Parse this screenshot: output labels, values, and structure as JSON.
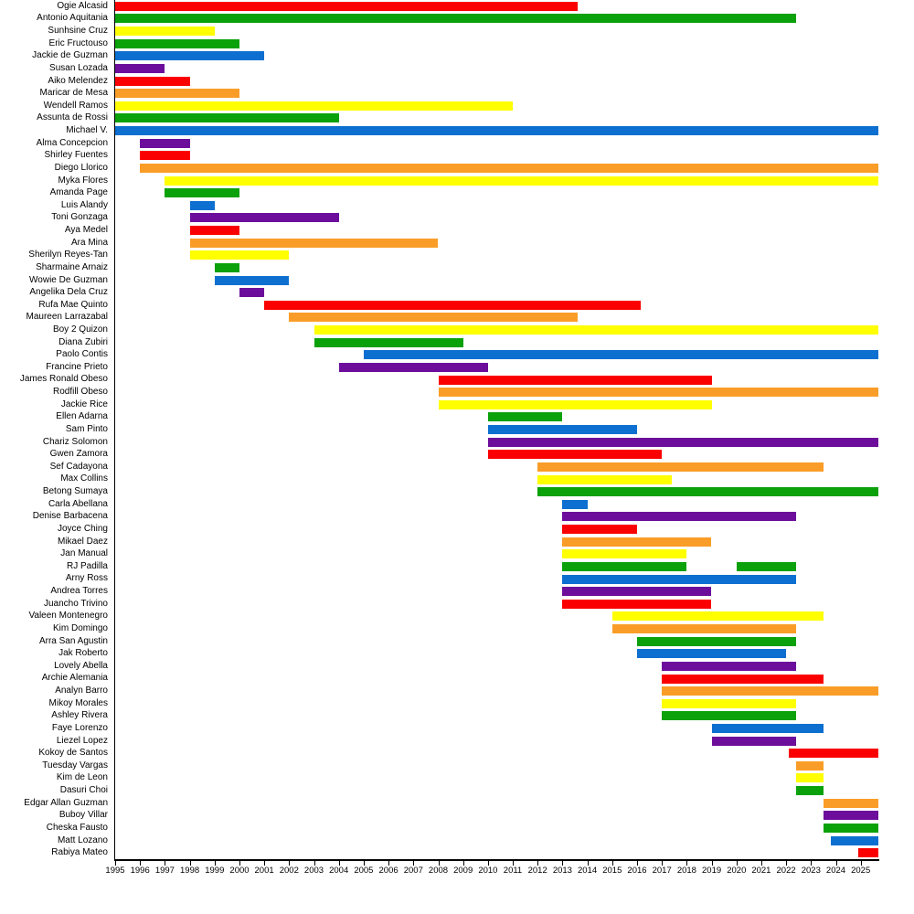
{
  "chart_data": {
    "type": "bar",
    "variant": "horizontal-gantt-timeline",
    "title": "",
    "xlabel": "",
    "ylabel": "",
    "grid": false,
    "legend": false,
    "x_axis": {
      "min": 1995,
      "max": 2025.7,
      "tick_years": [
        1995,
        1996,
        1997,
        1998,
        1999,
        2000,
        2001,
        2002,
        2003,
        2004,
        2005,
        2006,
        2007,
        2008,
        2009,
        2010,
        2011,
        2012,
        2013,
        2014,
        2015,
        2016,
        2017,
        2018,
        2019,
        2020,
        2021,
        2022,
        2023,
        2024,
        2025
      ]
    },
    "present_end": 2025.7,
    "palette": {
      "red": "#fa0000",
      "orange": "#fa9d28",
      "yellow": "#ffff00",
      "green": "#0ba10b",
      "blue": "#0d6fd0",
      "purple": "#6c0e9b"
    },
    "members": [
      {
        "name": "Ogie Alcasid",
        "color": "red",
        "segments": [
          [
            1995,
            2013.6
          ]
        ]
      },
      {
        "name": "Antonio Aquitania",
        "color": "green",
        "segments": [
          [
            1995,
            2022.4
          ]
        ]
      },
      {
        "name": "Sunhsine Cruz",
        "color": "yellow",
        "segments": [
          [
            1995,
            1999
          ]
        ]
      },
      {
        "name": "Eric Fructouso",
        "color": "green",
        "segments": [
          [
            1995,
            2000
          ]
        ]
      },
      {
        "name": "Jackie de Guzman",
        "color": "blue",
        "segments": [
          [
            1995,
            2001
          ]
        ]
      },
      {
        "name": "Susan Lozada",
        "color": "purple",
        "segments": [
          [
            1995,
            1997
          ]
        ]
      },
      {
        "name": "Aiko Melendez",
        "color": "red",
        "segments": [
          [
            1995,
            1998
          ]
        ]
      },
      {
        "name": "Maricar de Mesa",
        "color": "orange",
        "segments": [
          [
            1995,
            2000
          ]
        ]
      },
      {
        "name": "Wendell Ramos",
        "color": "yellow",
        "segments": [
          [
            1995,
            2011
          ]
        ]
      },
      {
        "name": "Assunta de Rossi",
        "color": "green",
        "segments": [
          [
            1995,
            2004
          ]
        ]
      },
      {
        "name": "Michael V.",
        "color": "blue",
        "segments": [
          [
            1995,
            2025.7
          ]
        ]
      },
      {
        "name": "Alma Concepcion",
        "color": "purple",
        "segments": [
          [
            1996,
            1998
          ]
        ]
      },
      {
        "name": "Shirley Fuentes",
        "color": "red",
        "segments": [
          [
            1996,
            1998
          ]
        ]
      },
      {
        "name": "Diego Llorico",
        "color": "orange",
        "segments": [
          [
            1996,
            2025.7
          ]
        ]
      },
      {
        "name": "Myka Flores",
        "color": "yellow",
        "segments": [
          [
            1997,
            2025.7
          ]
        ]
      },
      {
        "name": "Amanda Page",
        "color": "green",
        "segments": [
          [
            1997,
            2000
          ]
        ]
      },
      {
        "name": "Luis Alandy",
        "color": "blue",
        "segments": [
          [
            1998,
            1999
          ]
        ]
      },
      {
        "name": "Toni Gonzaga",
        "color": "purple",
        "segments": [
          [
            1998,
            2004
          ]
        ]
      },
      {
        "name": "Aya Medel",
        "color": "red",
        "segments": [
          [
            1998,
            2000
          ]
        ]
      },
      {
        "name": "Ara Mina",
        "color": "orange",
        "segments": [
          [
            1998,
            2008
          ]
        ]
      },
      {
        "name": "Sherilyn Reyes-Tan",
        "color": "yellow",
        "segments": [
          [
            1998,
            2002
          ]
        ]
      },
      {
        "name": "Sharmaine Arnaiz",
        "color": "green",
        "segments": [
          [
            1999,
            2000
          ]
        ]
      },
      {
        "name": "Wowie De Guzman",
        "color": "blue",
        "segments": [
          [
            1999,
            2002
          ]
        ]
      },
      {
        "name": "Angelika Dela Cruz",
        "color": "purple",
        "segments": [
          [
            2000,
            2001
          ]
        ]
      },
      {
        "name": "Rufa Mae Quinto",
        "color": "red",
        "segments": [
          [
            2001,
            2016.15
          ]
        ]
      },
      {
        "name": "Maureen Larrazabal",
        "color": "orange",
        "segments": [
          [
            2002,
            2013.6
          ]
        ]
      },
      {
        "name": "Boy 2 Quizon",
        "color": "yellow",
        "segments": [
          [
            2003,
            2025.7
          ]
        ]
      },
      {
        "name": "Diana Zubiri",
        "color": "green",
        "segments": [
          [
            2003,
            2009
          ]
        ]
      },
      {
        "name": "Paolo Contis",
        "color": "blue",
        "segments": [
          [
            2005,
            2025.7
          ]
        ]
      },
      {
        "name": "Francine Prieto",
        "color": "purple",
        "segments": [
          [
            2004,
            2010
          ]
        ]
      },
      {
        "name": "James Ronald Obeso",
        "color": "red",
        "segments": [
          [
            2008,
            2019
          ]
        ]
      },
      {
        "name": "Rodfill Obeso",
        "color": "orange",
        "segments": [
          [
            2008,
            2025.7
          ]
        ]
      },
      {
        "name": "Jackie Rice",
        "color": "yellow",
        "segments": [
          [
            2008,
            2019
          ]
        ]
      },
      {
        "name": "Ellen Adarna",
        "color": "green",
        "segments": [
          [
            2010,
            2013
          ]
        ]
      },
      {
        "name": "Sam Pinto",
        "color": "blue",
        "segments": [
          [
            2010,
            2016
          ]
        ]
      },
      {
        "name": "Chariz Solomon",
        "color": "purple",
        "segments": [
          [
            2010,
            2025.7
          ]
        ]
      },
      {
        "name": "Gwen Zamora",
        "color": "red",
        "segments": [
          [
            2010,
            2017
          ]
        ]
      },
      {
        "name": "Sef Cadayona",
        "color": "orange",
        "segments": [
          [
            2012,
            2023.5
          ]
        ]
      },
      {
        "name": "Max Collins",
        "color": "yellow",
        "segments": [
          [
            2012,
            2017.4
          ]
        ]
      },
      {
        "name": "Betong Sumaya",
        "color": "green",
        "segments": [
          [
            2012,
            2025.7
          ]
        ]
      },
      {
        "name": "Carla Abellana",
        "color": "blue",
        "segments": [
          [
            2013,
            2014
          ]
        ]
      },
      {
        "name": "Denise Barbacena",
        "color": "purple",
        "segments": [
          [
            2013,
            2022.4
          ]
        ]
      },
      {
        "name": "Joyce Ching",
        "color": "red",
        "segments": [
          [
            2013,
            2016
          ]
        ]
      },
      {
        "name": "Mikael Daez",
        "color": "orange",
        "segments": [
          [
            2013,
            2019
          ]
        ]
      },
      {
        "name": "Jan Manual",
        "color": "yellow",
        "segments": [
          [
            2013,
            2018
          ]
        ]
      },
      {
        "name": "RJ Padilla",
        "color": "green",
        "segments": [
          [
            2013,
            2018
          ],
          [
            2020,
            2022.4
          ]
        ]
      },
      {
        "name": "Arny Ross",
        "color": "blue",
        "segments": [
          [
            2013,
            2022.4
          ]
        ]
      },
      {
        "name": "Andrea Torres",
        "color": "purple",
        "segments": [
          [
            2013,
            2019
          ]
        ]
      },
      {
        "name": "Juancho Trivino",
        "color": "red",
        "segments": [
          [
            2013,
            2019
          ]
        ]
      },
      {
        "name": "Valeen Montenegro",
        "color": "yellow",
        "segments": [
          [
            2015,
            2023.5
          ]
        ]
      },
      {
        "name": "Kim Domingo",
        "color": "orange",
        "segments": [
          [
            2015,
            2022.4
          ]
        ]
      },
      {
        "name": "Arra San Agustin",
        "color": "green",
        "segments": [
          [
            2016,
            2022.4
          ]
        ]
      },
      {
        "name": "Jak Roberto",
        "color": "blue",
        "segments": [
          [
            2016,
            2022
          ]
        ]
      },
      {
        "name": "Lovely Abella",
        "color": "purple",
        "segments": [
          [
            2017,
            2022.4
          ]
        ]
      },
      {
        "name": "Archie Alemania",
        "color": "red",
        "segments": [
          [
            2017,
            2023.5
          ]
        ]
      },
      {
        "name": "Analyn Barro",
        "color": "orange",
        "segments": [
          [
            2017,
            2025.7
          ]
        ]
      },
      {
        "name": "Mikoy Morales",
        "color": "yellow",
        "segments": [
          [
            2017,
            2022.4
          ]
        ]
      },
      {
        "name": "Ashley Rivera",
        "color": "green",
        "segments": [
          [
            2017,
            2022.4
          ]
        ]
      },
      {
        "name": "Faye Lorenzo",
        "color": "blue",
        "segments": [
          [
            2019,
            2023.5
          ]
        ]
      },
      {
        "name": "Liezel Lopez",
        "color": "purple",
        "segments": [
          [
            2019,
            2022.4
          ]
        ]
      },
      {
        "name": "Kokoy de Santos",
        "color": "red",
        "segments": [
          [
            2022.1,
            2025.7
          ]
        ]
      },
      {
        "name": "Tuesday Vargas",
        "color": "orange",
        "segments": [
          [
            2022.4,
            2023.5
          ]
        ]
      },
      {
        "name": "Kim de Leon",
        "color": "yellow",
        "segments": [
          [
            2022.4,
            2023.5
          ]
        ]
      },
      {
        "name": "Dasuri Choi",
        "color": "green",
        "segments": [
          [
            2022.4,
            2023.5
          ]
        ]
      },
      {
        "name": "Edgar Allan Guzman",
        "color": "orange",
        "segments": [
          [
            2023.5,
            2025.7
          ]
        ]
      },
      {
        "name": "Buboy Villar",
        "color": "purple",
        "segments": [
          [
            2023.5,
            2025.7
          ]
        ]
      },
      {
        "name": "Cheska Fausto",
        "color": "green",
        "segments": [
          [
            2023.5,
            2025.7
          ]
        ]
      },
      {
        "name": "Matt Lozano",
        "color": "blue",
        "segments": [
          [
            2023.8,
            2025.7
          ]
        ]
      },
      {
        "name": "Rabiya Mateo",
        "color": "red",
        "segments": [
          [
            2024.9,
            2025.7
          ]
        ]
      }
    ]
  }
}
